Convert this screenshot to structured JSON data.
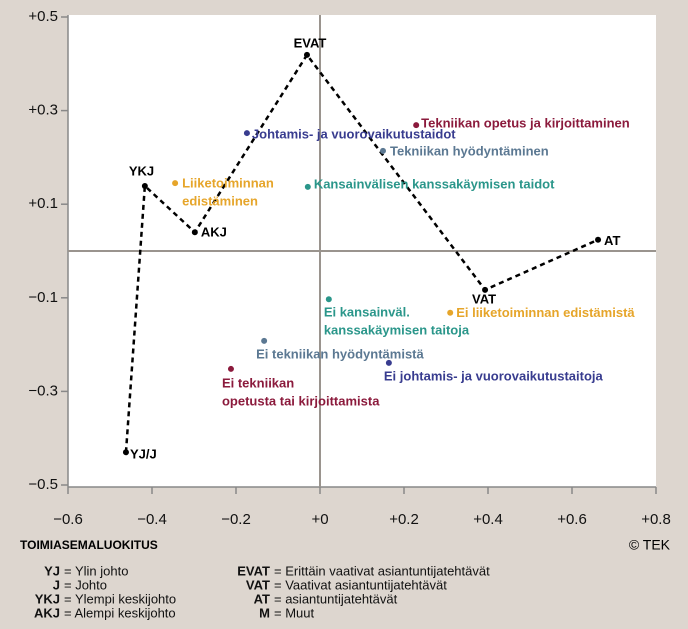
{
  "chart_data": {
    "type": "scatter",
    "xlim": [
      -0.6,
      0.8
    ],
    "ylim": [
      -0.5,
      0.5
    ],
    "xticks": [
      {
        "value": -0.6,
        "label": "−0.6"
      },
      {
        "value": -0.4,
        "label": "−0.4"
      },
      {
        "value": -0.2,
        "label": "−0.2"
      },
      {
        "value": 0,
        "label": "+0"
      },
      {
        "value": 0.2,
        "label": "+0.2"
      },
      {
        "value": 0.4,
        "label": "+0.4"
      },
      {
        "value": 0.6,
        "label": "+0.6"
      },
      {
        "value": 0.8,
        "label": "+0.8"
      }
    ],
    "yticks": [
      {
        "value": 0.5,
        "label": "+0.5"
      },
      {
        "value": 0.3,
        "label": "+0.3"
      },
      {
        "value": 0.1,
        "label": "+0.1"
      },
      {
        "value": -0.1,
        "label": "−0.1"
      },
      {
        "value": -0.3,
        "label": "−0.3"
      },
      {
        "value": -0.5,
        "label": "−0.5"
      }
    ],
    "grid": false,
    "path": {
      "color": "#000000",
      "labels": [
        "YJ/J",
        "YKJ",
        "AKJ",
        "EVAT",
        "VAT",
        "AT"
      ],
      "x": [
        -0.462,
        -0.417,
        -0.298,
        -0.031,
        0.393,
        0.662
      ],
      "y": [
        -0.43,
        0.139,
        0.04,
        0.419,
        -0.083,
        0.024
      ]
    },
    "points": [
      {
        "label": [
          "Tekniikan opetus ja kirjoittaminen"
        ],
        "color": "#8b1a3c",
        "x": 0.229,
        "y": 0.269
      },
      {
        "label": [
          "Johtamis- ja vuorovaikutustaidot"
        ],
        "color": "#383c8f",
        "x": -0.174,
        "y": 0.252
      },
      {
        "label": [
          "Tekniikan hyödyntäminen"
        ],
        "color": "#5b7892",
        "x": 0.15,
        "y": 0.214
      },
      {
        "label": [
          "Liiketoiminnan",
          "edistäminen"
        ],
        "color": "#e6a52a",
        "x": -0.345,
        "y": 0.145
      },
      {
        "label": [
          "Kansainvälisen kanssakäymisen taidot"
        ],
        "color": "#2a968a",
        "x": -0.029,
        "y": 0.137
      },
      {
        "label": [
          "Ei kansainväl.",
          "kanssakäymisen taitoja"
        ],
        "color": "#2a968a",
        "x": 0.021,
        "y": -0.103
      },
      {
        "label": [
          "Ei liiketoiminnan edistämistä"
        ],
        "color": "#e6a52a",
        "x": 0.31,
        "y": -0.132
      },
      {
        "label": [
          "Ei tekniikan hyödyntämistä"
        ],
        "color": "#5b7892",
        "x": -0.133,
        "y": -0.192
      },
      {
        "label": [
          "Ei johtamis- ja vuorovaikutustaitoja"
        ],
        "color": "#383c8f",
        "x": 0.164,
        "y": -0.239
      },
      {
        "label": [
          "Ei tekniikan",
          "opetusta tai kirjoittamista"
        ],
        "color": "#8b1a3c",
        "x": -0.212,
        "y": -0.252
      }
    ],
    "xlabel": "TOIMIASEMALUOKITUS",
    "source": "© TEK",
    "legend_left": [
      {
        "abbr": "YJ",
        "text": "= Ylin johto"
      },
      {
        "abbr": "J",
        "text": "= Johto"
      },
      {
        "abbr": "YKJ",
        "text": "= Ylempi keskijohto"
      },
      {
        "abbr": "AKJ",
        "text": "= Alempi keskijohto"
      }
    ],
    "legend_right": [
      {
        "abbr": "EVAT",
        "text": "= Erittäin vaativat asiantuntijatehtävät"
      },
      {
        "abbr": "VAT",
        "text": "= Vaativat asiantuntijatehtävät"
      },
      {
        "abbr": "AT",
        "text": "= asiantuntijatehtävät"
      },
      {
        "abbr": "M",
        "text": "= Muut"
      }
    ]
  }
}
